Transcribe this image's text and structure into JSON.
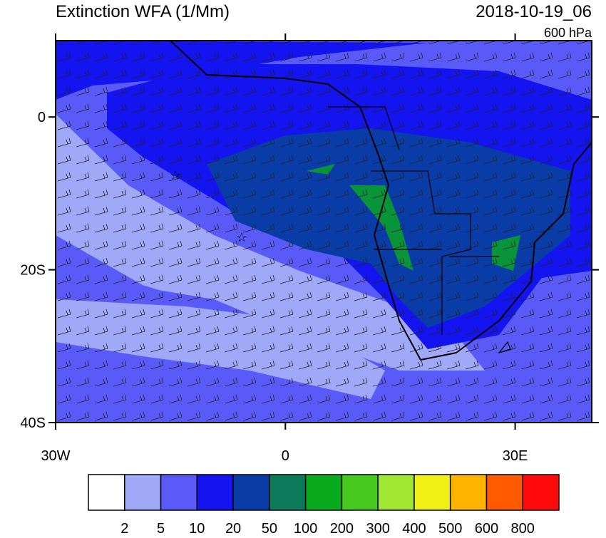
{
  "title": "Extinction WFA (1/Mm)",
  "valid_time": "2018-10-19_06",
  "level": "600 hPa",
  "map": {
    "xlim": [
      -30,
      40
    ],
    "ylim": [
      -40,
      10
    ],
    "xticks": [
      {
        "value": -30,
        "label": "30W"
      },
      0,
      {
        "value": 30,
        "label": "30E"
      }
    ],
    "yticks": [
      0,
      {
        "value": -20,
        "label": "20S"
      },
      {
        "value": -40,
        "label": "40S"
      }
    ]
  },
  "colorbar": {
    "levels": [
      2,
      5,
      10,
      20,
      50,
      100,
      200,
      300,
      400,
      500,
      600,
      800
    ],
    "colors": [
      "#ffffff",
      "#a0a8f8",
      "#5a5af8",
      "#1414f0",
      "#0a3ca8",
      "#0a7a5a",
      "#0aaa1e",
      "#46c81e",
      "#a0e632",
      "#f0f014",
      "#ffb400",
      "#ff5a00",
      "#ff0a0a"
    ]
  }
}
